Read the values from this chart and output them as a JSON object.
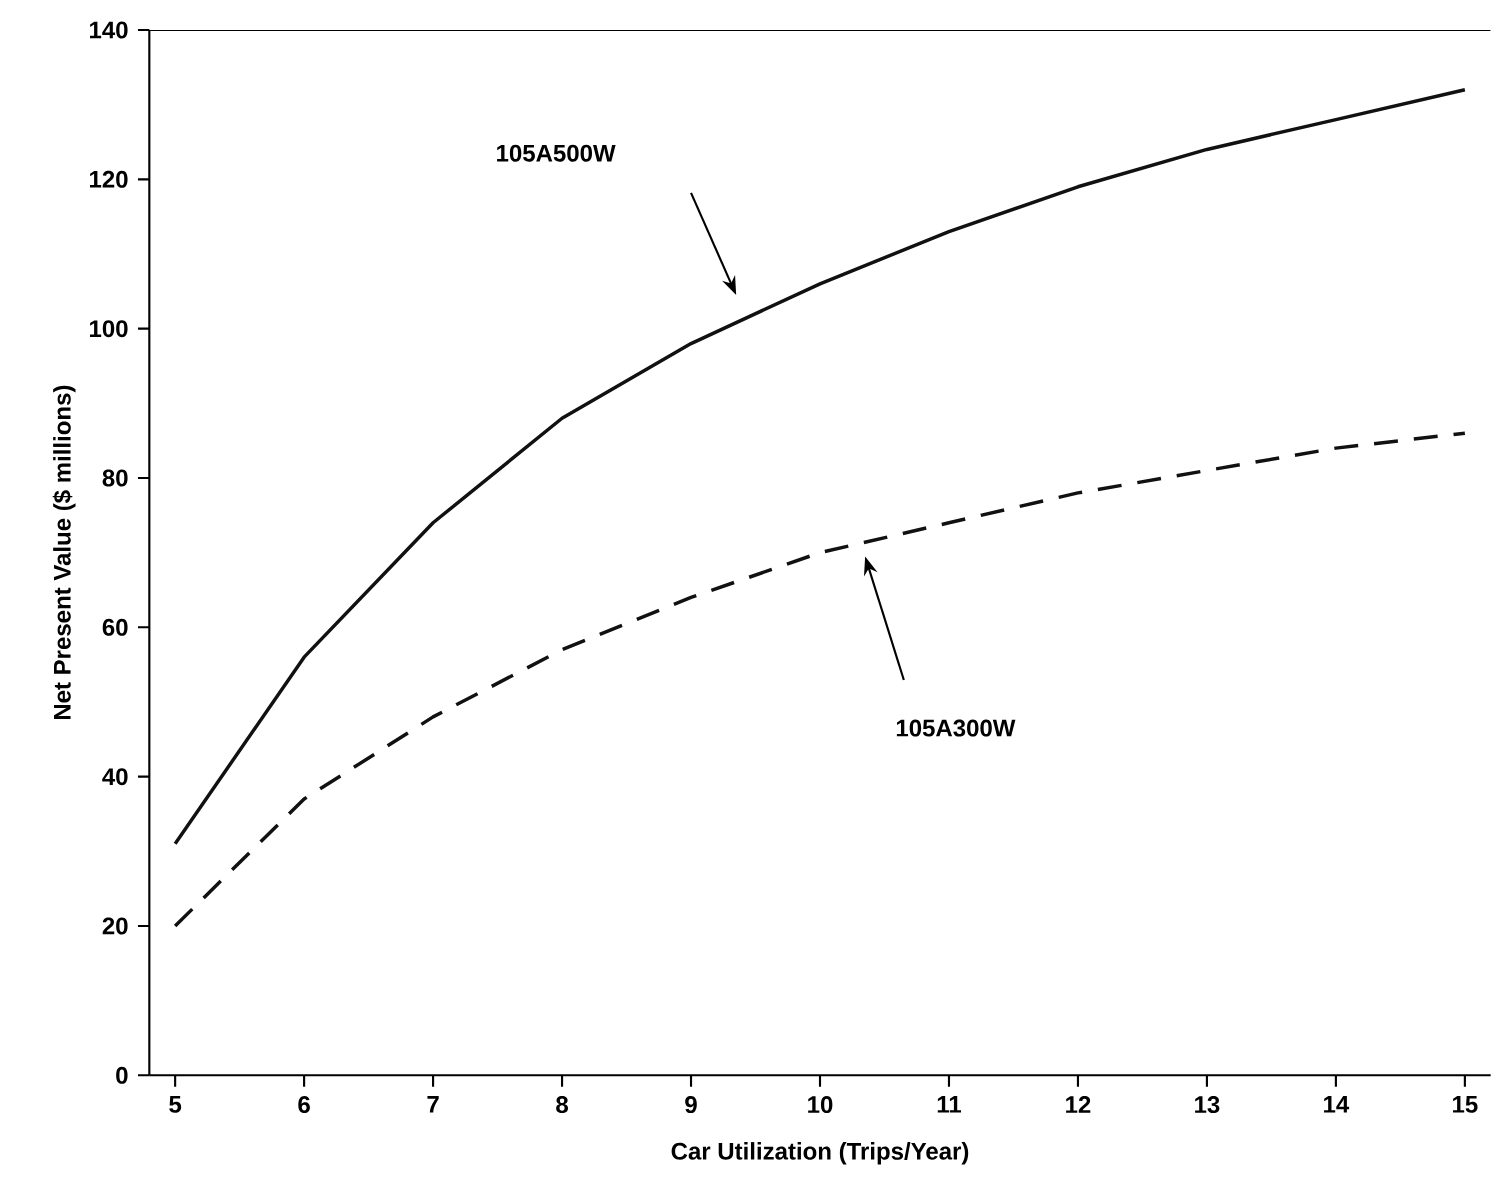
{
  "chart_data": {
    "type": "line",
    "xlabel": "Car Utilization (Trips/Year)",
    "ylabel": "Net Present Value ($ millions)",
    "x": [
      5,
      6,
      7,
      8,
      9,
      10,
      11,
      12,
      13,
      14,
      15
    ],
    "series": [
      {
        "color": "#111111",
        "line_style": "solid",
        "values": [
          31,
          56,
          74,
          88,
          98,
          106,
          113,
          119,
          124,
          128,
          132
        ]
      },
      {
        "color": "#111111",
        "line_style": "dashed",
        "values": [
          20,
          37,
          48,
          57,
          64,
          70,
          74,
          78,
          81,
          84,
          86
        ]
      }
    ],
    "xlim": [
      4.8,
      15.2
    ],
    "ylim": [
      0,
      140
    ],
    "xticks": [
      5,
      6,
      7,
      8,
      9,
      10,
      11,
      12,
      13,
      14,
      15
    ],
    "yticks": [
      0,
      20,
      40,
      60,
      80,
      100,
      120,
      140
    ],
    "marker": "none",
    "annotations": [
      "105A500W",
      "105A300W"
    ]
  }
}
